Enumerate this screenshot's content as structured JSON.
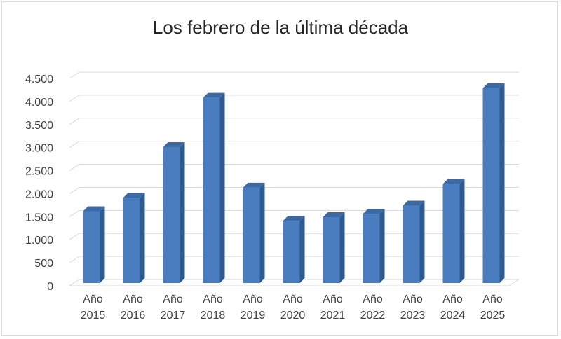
{
  "chart_data": {
    "type": "bar",
    "title": "Los febrero de la última década",
    "categories": [
      [
        "Año",
        "2015"
      ],
      [
        "Año",
        "2016"
      ],
      [
        "Año",
        "2017"
      ],
      [
        "Año",
        "2018"
      ],
      [
        "Año",
        "2019"
      ],
      [
        "Año",
        "2020"
      ],
      [
        "Año",
        "2021"
      ],
      [
        "Año",
        "2022"
      ],
      [
        "Año",
        "2023"
      ],
      [
        "Año",
        "2024"
      ],
      [
        "Año",
        "2025"
      ]
    ],
    "values": [
      1620,
      1910,
      3010,
      4080,
      2130,
      1410,
      1490,
      1560,
      1740,
      2210,
      4290
    ],
    "ylim": [
      0,
      4500
    ],
    "yticks": [
      0,
      500,
      1000,
      1500,
      2000,
      2500,
      3000,
      3500,
      4000,
      4500
    ],
    "ytick_labels": [
      "0",
      "500",
      "1.000",
      "1.500",
      "2.000",
      "2.500",
      "3.000",
      "3.500",
      "4.000",
      "4.500"
    ],
    "grid": true,
    "legend": "none",
    "colors": {
      "bar_front": "#4a7dbf",
      "bar_side": "#2e5a8e",
      "bar_top": "#3a6aa6",
      "grid": "#d9d9d9",
      "floor": "#d9d9d9"
    }
  }
}
